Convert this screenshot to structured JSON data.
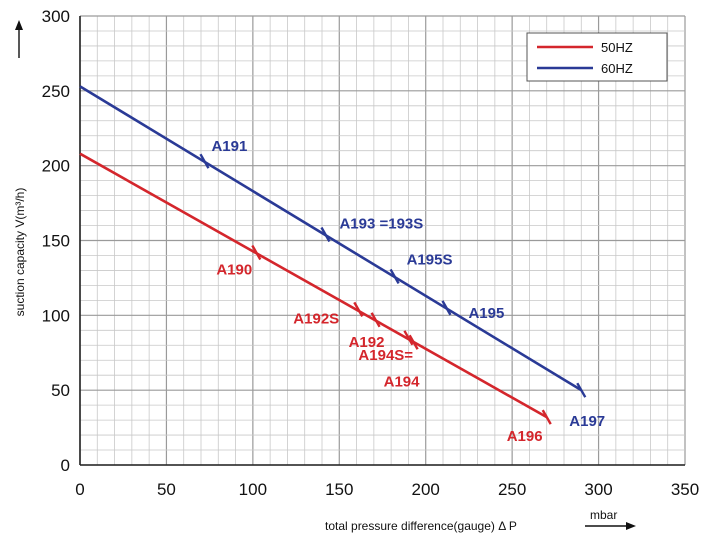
{
  "chart_data": {
    "type": "line",
    "title": "",
    "xlabel": "total pressure difference(gauge)  Δ P",
    "xunit": "mbar",
    "ylabel": "suction capacity V(m³/h)",
    "xlim": [
      0,
      350
    ],
    "ylim": [
      0,
      300
    ],
    "xticks": [
      "0",
      "50",
      "100",
      "150",
      "200",
      "250",
      "300",
      "350"
    ],
    "yticks": [
      "0",
      "50",
      "100",
      "150",
      "200",
      "250",
      "300"
    ],
    "grid": true,
    "legend_position": "top-right",
    "series": [
      {
        "name": "50HZ",
        "color": "#d4262c",
        "x": [
          0,
          270
        ],
        "y": [
          208,
          32
        ],
        "markers": [
          {
            "label": "A190",
            "x": 102,
            "y": 142
          },
          {
            "label": "A192S",
            "x": 161,
            "y": 104
          },
          {
            "label": "A192",
            "x": 171,
            "y": 97
          },
          {
            "label": "A194S=",
            "x": 190,
            "y": 85
          },
          {
            "label": "A194",
            "x": 193,
            "y": 82
          },
          {
            "label": "A196",
            "x": 270,
            "y": 32
          }
        ]
      },
      {
        "name": "60HZ",
        "color": "#2a3a96",
        "x": [
          0,
          290
        ],
        "y": [
          253,
          50
        ],
        "markers": [
          {
            "label": "A191",
            "x": 72,
            "y": 203
          },
          {
            "label": "A193 =193S",
            "x": 142,
            "y": 154
          },
          {
            "label": "A195S",
            "x": 182,
            "y": 126
          },
          {
            "label": "A195",
            "x": 212,
            "y": 105
          },
          {
            "label": "A197",
            "x": 290,
            "y": 50
          }
        ]
      }
    ]
  }
}
